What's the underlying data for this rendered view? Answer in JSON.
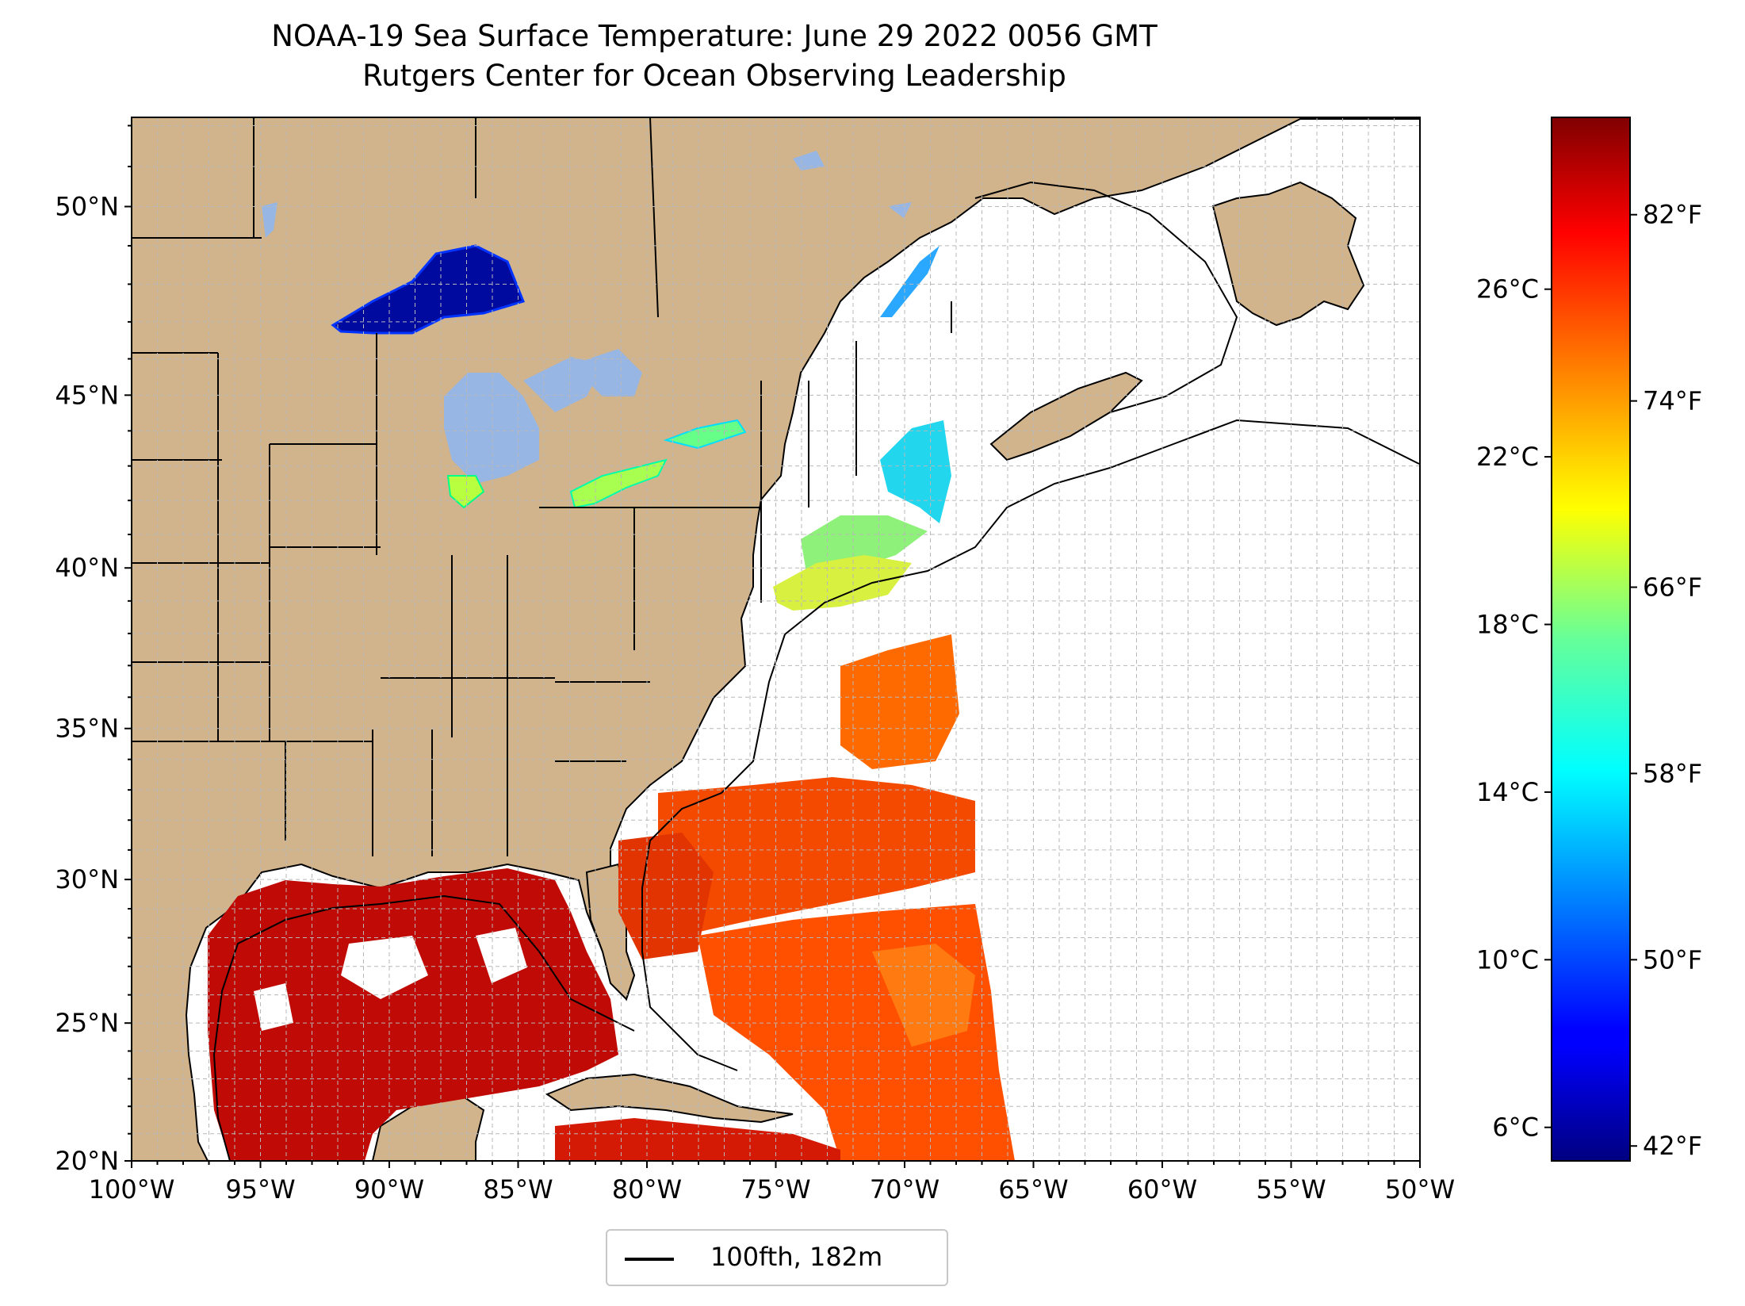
{
  "title": {
    "line1": "NOAA-19 Sea Surface Temperature: June 29 2022 0056 GMT",
    "line2": "Rutgers Center for Ocean Observing Leadership"
  },
  "map": {
    "extent": {
      "lon_min": -100,
      "lon_max": -50,
      "lat_min": 20,
      "lat_max": 52.2
    },
    "projection": "mercator",
    "land_color": "#d2b48c",
    "ocean_color": "#ffffff",
    "gridlines": "dashed gray, 1 degree",
    "lon_ticks": [
      {
        "lon": -100,
        "label": "100°W"
      },
      {
        "lon": -95,
        "label": "95°W"
      },
      {
        "lon": -90,
        "label": "90°W"
      },
      {
        "lon": -85,
        "label": "85°W"
      },
      {
        "lon": -80,
        "label": "80°W"
      },
      {
        "lon": -75,
        "label": "75°W"
      },
      {
        "lon": -70,
        "label": "70°W"
      },
      {
        "lon": -65,
        "label": "65°W"
      },
      {
        "lon": -60,
        "label": "60°W"
      },
      {
        "lon": -55,
        "label": "55°W"
      },
      {
        "lon": -50,
        "label": "50°W"
      }
    ],
    "lat_ticks": [
      {
        "lat": 20,
        "label": "20°N"
      },
      {
        "lat": 25,
        "label": "25°N"
      },
      {
        "lat": 30,
        "label": "30°N"
      },
      {
        "lat": 35,
        "label": "35°N"
      },
      {
        "lat": 40,
        "label": "40°N"
      },
      {
        "lat": 45,
        "label": "45°N"
      },
      {
        "lat": 50,
        "label": "50°N"
      }
    ]
  },
  "colorbar": {
    "colormap": "jet",
    "range_c": [
      5.2,
      30.1
    ],
    "celsius_ticks": [
      {
        "value": 6,
        "label": "6°C"
      },
      {
        "value": 10,
        "label": "10°C"
      },
      {
        "value": 14,
        "label": "14°C"
      },
      {
        "value": 18,
        "label": "18°C"
      },
      {
        "value": 22,
        "label": "22°C"
      },
      {
        "value": 26,
        "label": "26°C"
      }
    ],
    "fahrenheit_ticks": [
      {
        "value": 42,
        "label": "42°F"
      },
      {
        "value": 50,
        "label": "50°F"
      },
      {
        "value": 58,
        "label": "58°F"
      },
      {
        "value": 66,
        "label": "66°F"
      },
      {
        "value": 74,
        "label": "74°F"
      },
      {
        "value": 82,
        "label": "82°F"
      }
    ]
  },
  "legend": {
    "entries": [
      {
        "label": "100fth, 182m",
        "color": "#000000"
      }
    ]
  }
}
